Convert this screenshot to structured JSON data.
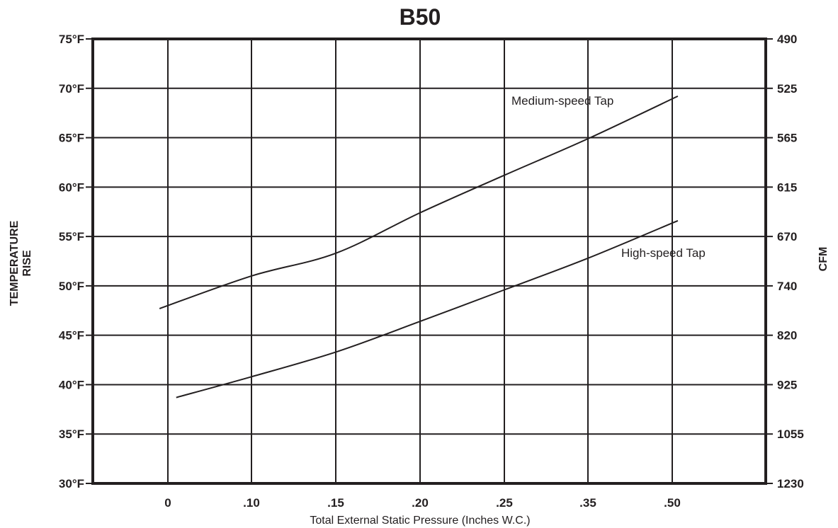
{
  "chart_data": {
    "type": "line",
    "title": "B50",
    "xlabel": "Total External Static Pressure (Inches W.C.)",
    "ylabel_left": [
      "TEMPERATURE",
      "RISE"
    ],
    "ylabel_right": "CFM",
    "x_ticks": [
      {
        "value": 0,
        "label": "0"
      },
      {
        "value": 0.1,
        "label": ".10"
      },
      {
        "value": 0.15,
        "label": ".15"
      },
      {
        "value": 0.2,
        "label": ".20"
      },
      {
        "value": 0.25,
        "label": ".25"
      },
      {
        "value": 0.35,
        "label": ".35"
      },
      {
        "value": 0.5,
        "label": ".50"
      }
    ],
    "y_ticks_left": [
      "75°F",
      "70°F",
      "65°F",
      "60°F",
      "55°F",
      "50°F",
      "45°F",
      "40°F",
      "35°F",
      "30°F"
    ],
    "y_ticks_right": [
      "490",
      "525",
      "565",
      "615",
      "670",
      "740",
      "820",
      "925",
      "1055",
      "1230"
    ],
    "ylim": [
      30,
      75
    ],
    "grid": true,
    "series": [
      {
        "name": "Medium-speed Tap",
        "points": [
          [
            -0.01,
            47.7
          ],
          [
            0.1,
            51.0
          ],
          [
            0.15,
            53.3
          ],
          [
            0.2,
            57.4
          ],
          [
            0.25,
            61.2
          ],
          [
            0.35,
            64.9
          ],
          [
            0.51,
            69.2
          ]
        ]
      },
      {
        "name": "High-speed Tap",
        "points": [
          [
            0.01,
            38.7
          ],
          [
            0.1,
            40.8
          ],
          [
            0.15,
            43.3
          ],
          [
            0.2,
            46.4
          ],
          [
            0.25,
            49.6
          ],
          [
            0.35,
            52.8
          ],
          [
            0.51,
            56.6
          ]
        ]
      }
    ]
  }
}
